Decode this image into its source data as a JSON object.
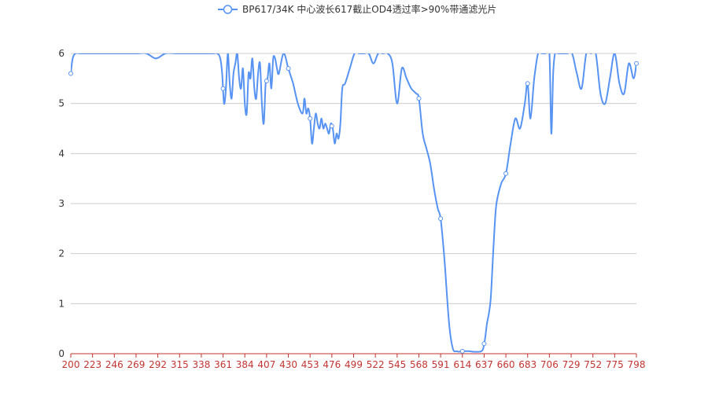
{
  "chart_data": {
    "type": "line",
    "title": "",
    "xlabel": "",
    "ylabel": "",
    "xlim": [
      200,
      798
    ],
    "ylim": [
      0,
      6
    ],
    "grid": true,
    "legend_position": "top-center",
    "x_tick_labels": [
      "200",
      "223",
      "246",
      "269",
      "292",
      "315",
      "338",
      "361",
      "384",
      "407",
      "430",
      "453",
      "476",
      "499",
      "522",
      "545",
      "568",
      "591",
      "614",
      "637",
      "660",
      "683",
      "706",
      "729",
      "752",
      "775",
      "798"
    ],
    "y_tick_labels": [
      "0",
      "1",
      "2",
      "3",
      "4",
      "5",
      "6"
    ],
    "series": [
      {
        "name": "BP617/34K 中心波长617截止OD4透过率>90%带通滤光片",
        "color": "#5793f3",
        "marker_x": [
          200,
          361,
          407,
          430,
          453,
          476,
          568,
          591,
          614,
          637,
          660,
          683,
          798
        ],
        "x": [
          200,
          202,
          205,
          210,
          215,
          220,
          225,
          230,
          240,
          250,
          260,
          270,
          280,
          290,
          300,
          310,
          315,
          320,
          325,
          330,
          335,
          340,
          345,
          350,
          355,
          358,
          360,
          362,
          364,
          366,
          368,
          370,
          372,
          374,
          376,
          378,
          380,
          382,
          384,
          386,
          388,
          390,
          392,
          394,
          396,
          398,
          400,
          402,
          404,
          406,
          408,
          410,
          412,
          414,
          416,
          418,
          420,
          425,
          430,
          435,
          440,
          445,
          447,
          449,
          451,
          453,
          455,
          457,
          459,
          461,
          463,
          465,
          467,
          469,
          471,
          473,
          475,
          477,
          479,
          481,
          483,
          485,
          487,
          490,
          495,
          500,
          505,
          510,
          515,
          520,
          525,
          530,
          535,
          540,
          545,
          550,
          555,
          560,
          565,
          568,
          572,
          576,
          580,
          584,
          588,
          591,
          595,
          600,
          604,
          608,
          610,
          614,
          620,
          626,
          632,
          634,
          636,
          638,
          640,
          642,
          644,
          646,
          648,
          650,
          655,
          660,
          665,
          670,
          675,
          680,
          683,
          686,
          690,
          694,
          698,
          702,
          706,
          708,
          710,
          712,
          715,
          720,
          725,
          730,
          735,
          740,
          745,
          750,
          755,
          760,
          765,
          770,
          775,
          780,
          785,
          790,
          795,
          798
        ],
        "y": [
          5.6,
          5.9,
          6.0,
          6.0,
          6.0,
          6.0,
          6.0,
          6.0,
          6.0,
          6.0,
          6.0,
          6.0,
          6.0,
          5.9,
          6.0,
          6.0,
          6.0,
          6.0,
          6.0,
          6.0,
          6.0,
          6.0,
          6.0,
          6.0,
          6.0,
          5.9,
          5.6,
          5.0,
          5.3,
          6.0,
          5.4,
          5.1,
          5.6,
          5.8,
          6.0,
          5.5,
          5.3,
          5.7,
          5.0,
          4.8,
          5.6,
          5.5,
          5.9,
          5.3,
          5.1,
          5.6,
          5.8,
          5.0,
          4.6,
          5.4,
          5.5,
          5.8,
          5.3,
          5.9,
          5.9,
          5.7,
          5.6,
          6.0,
          5.7,
          5.4,
          5.0,
          4.8,
          5.1,
          4.8,
          4.9,
          4.7,
          4.2,
          4.5,
          4.8,
          4.6,
          4.5,
          4.7,
          4.5,
          4.6,
          4.5,
          4.4,
          4.6,
          4.5,
          4.2,
          4.4,
          4.3,
          4.6,
          5.3,
          5.4,
          5.7,
          6.0,
          6.0,
          6.0,
          6.0,
          5.8,
          6.0,
          6.0,
          6.0,
          5.8,
          5.0,
          5.7,
          5.5,
          5.3,
          5.2,
          5.1,
          4.4,
          4.1,
          3.8,
          3.3,
          2.9,
          2.7,
          1.9,
          0.6,
          0.1,
          0.05,
          0.04,
          0.05,
          0.05,
          0.04,
          0.04,
          0.05,
          0.1,
          0.3,
          0.6,
          0.8,
          1.1,
          1.8,
          2.5,
          3.0,
          3.4,
          3.6,
          4.2,
          4.7,
          4.5,
          5.0,
          5.4,
          4.7,
          5.5,
          6.0,
          6.0,
          6.0,
          6.0,
          4.4,
          5.6,
          6.0,
          6.0,
          6.0,
          6.0,
          6.0,
          5.6,
          5.3,
          6.0,
          6.0,
          6.0,
          5.2,
          5.0,
          5.5,
          6.0,
          5.4,
          5.2,
          5.8,
          5.5,
          5.8
        ]
      }
    ]
  }
}
